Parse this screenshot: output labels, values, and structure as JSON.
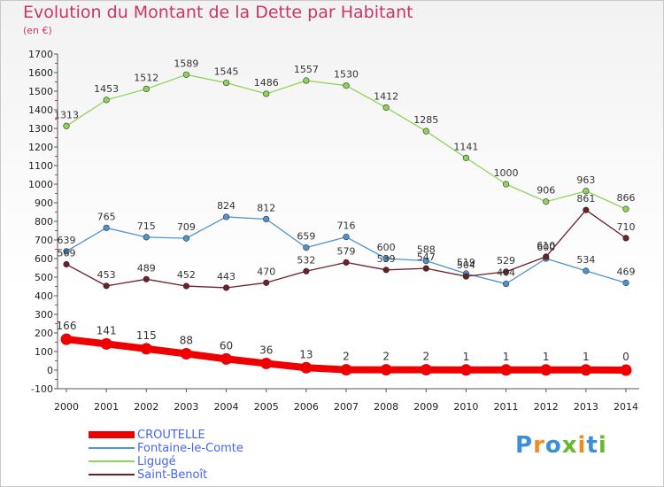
{
  "title": "Evolution du Montant de la Dette par Habitant",
  "subtitle": "(en €)",
  "logo": {
    "text": "Proxiti",
    "colors": [
      "#3a8fd8",
      "#f08c1e",
      "#3a8fd8",
      "#6ab82e",
      "#f08c1e",
      "#3a8fd8",
      "#6ab82e"
    ]
  },
  "chart_data": {
    "type": "line",
    "title": "Evolution du Montant de la Dette par Habitant",
    "ylabel": "(en €)",
    "xlabel": "",
    "x": [
      2000,
      2001,
      2002,
      2003,
      2004,
      2005,
      2006,
      2007,
      2008,
      2009,
      2010,
      2011,
      2012,
      2013,
      2014
    ],
    "ylim": [
      -100,
      1700
    ],
    "yticks": [
      -100,
      0,
      100,
      200,
      300,
      400,
      500,
      600,
      700,
      800,
      900,
      1000,
      1100,
      1200,
      1300,
      1400,
      1500,
      1600,
      1700
    ],
    "grid": false,
    "legend": "bottom-left",
    "series": [
      {
        "name": "CROUTELLE",
        "color": "#ee0000",
        "values": [
          166,
          141,
          115,
          88,
          60,
          36,
          13,
          2,
          2,
          2,
          1,
          1,
          1,
          1,
          0
        ]
      },
      {
        "name": "Fontaine-le-Comte",
        "color": "#4f93d0",
        "values": [
          639,
          765,
          715,
          709,
          824,
          812,
          659,
          716,
          600,
          588,
          519,
          464,
          600,
          534,
          469
        ]
      },
      {
        "name": "Ligugé",
        "color": "#8fd45a",
        "values": [
          1313,
          1453,
          1512,
          1589,
          1545,
          1486,
          1557,
          1530,
          1412,
          1285,
          1141,
          1000,
          906,
          963,
          866
        ]
      },
      {
        "name": "Saint-Benoît",
        "color": "#6b1f27",
        "values": [
          569,
          453,
          489,
          452,
          443,
          470,
          532,
          579,
          539,
          547,
          504,
          529,
          610,
          861,
          710
        ]
      }
    ]
  }
}
